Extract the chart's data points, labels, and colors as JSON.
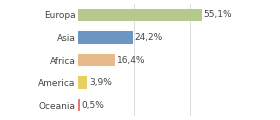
{
  "categories": [
    "Europa",
    "Asia",
    "Africa",
    "America",
    "Oceania"
  ],
  "values": [
    55.1,
    24.2,
    16.4,
    3.9,
    0.5
  ],
  "labels": [
    "55,1%",
    "24,2%",
    "16,4%",
    "3,9%",
    "0,5%"
  ],
  "bar_colors": [
    "#b5c98e",
    "#6b96c4",
    "#e8b98a",
    "#e8d060",
    "#e87878"
  ],
  "background_color": "#ffffff",
  "xlim": [
    0,
    75
  ],
  "label_fontsize": 6.5,
  "tick_fontsize": 6.5,
  "grid_lines": [
    25,
    50
  ],
  "grid_color": "#dddddd"
}
